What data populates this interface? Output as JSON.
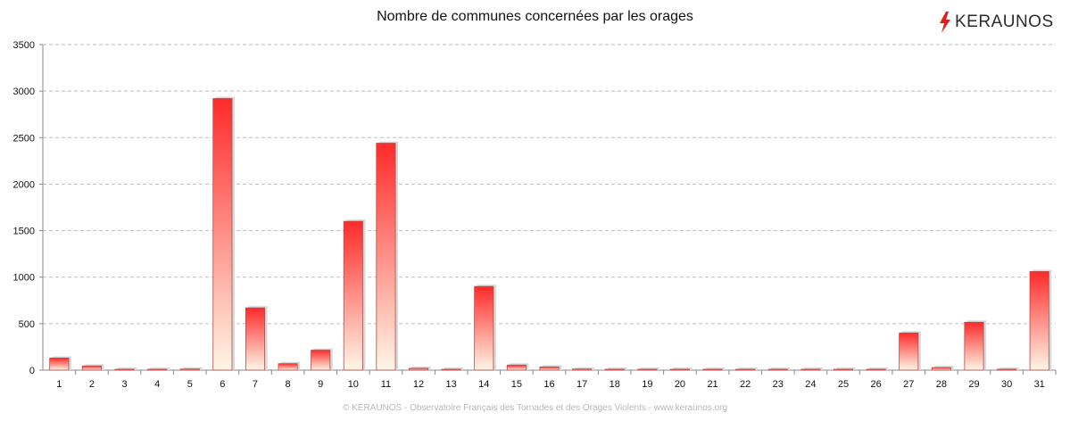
{
  "chart_data": {
    "type": "bar",
    "title": "Nombre de communes concernées par les orages",
    "xlabel": "",
    "ylabel": "",
    "ylim": [
      0,
      3500
    ],
    "yticks": [
      0,
      500,
      1000,
      1500,
      2000,
      2500,
      3000,
      3500
    ],
    "grid": true,
    "categories": [
      "1",
      "2",
      "3",
      "4",
      "5",
      "6",
      "7",
      "8",
      "9",
      "10",
      "11",
      "12",
      "13",
      "14",
      "15",
      "16",
      "17",
      "18",
      "19",
      "20",
      "21",
      "22",
      "23",
      "24",
      "25",
      "26",
      "27",
      "28",
      "29",
      "30",
      "31"
    ],
    "values": [
      130,
      45,
      3,
      3,
      12,
      2920,
      670,
      70,
      215,
      1600,
      2440,
      20,
      2,
      900,
      55,
      35,
      12,
      2,
      2,
      2,
      2,
      2,
      2,
      2,
      2,
      3,
      400,
      28,
      515,
      10,
      1060
    ],
    "colors": {
      "bar_top": "#ff2a2a",
      "bar_bottom": "#fff6e6",
      "bar_edge": "#b24a4a",
      "grid": "#bfbfbf"
    }
  },
  "brand": {
    "name": "KERAUNOS",
    "icon": "lightning-bolt-icon",
    "color": "#e02020"
  },
  "footer": {
    "text": "© KERAUNOS - Observatoire Français des Tornades et des Orages Violents - www.keraunos.org"
  }
}
